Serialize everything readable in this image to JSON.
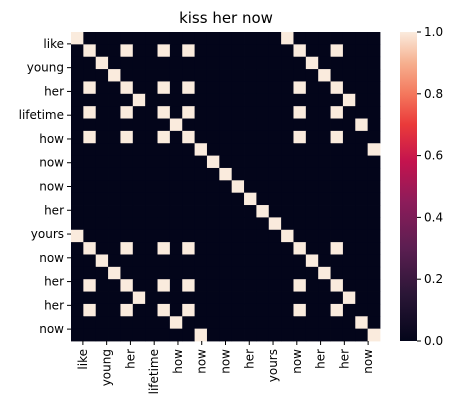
{
  "chart_data": {
    "type": "heatmap",
    "title": "kiss her now",
    "y_tick_labels": [
      "like",
      "young",
      "her",
      "lifetime",
      "how",
      "now",
      "now",
      "her",
      "yours",
      "now",
      "her",
      "her",
      "now"
    ],
    "x_tick_labels": [
      "like",
      "young",
      "her",
      "lifetime",
      "how",
      "now",
      "now",
      "her",
      "yours",
      "now",
      "her",
      "her",
      "now"
    ],
    "colorbar": {
      "min": 0,
      "max": 1,
      "ticks": [
        "0.0",
        "0.2",
        "0.4",
        "0.6",
        "0.8",
        "1.0"
      ],
      "colormap": "rocket"
    },
    "matrix": [
      [
        1,
        0,
        0,
        0,
        0,
        0,
        0,
        0,
        0,
        0,
        0,
        0,
        0,
        0,
        0,
        0,
        0,
        1,
        0,
        0,
        0,
        0,
        0,
        0,
        0
      ],
      [
        0,
        1,
        0,
        0,
        1,
        0,
        0,
        1,
        0,
        1,
        0,
        0,
        0,
        0,
        0,
        0,
        0,
        0,
        1,
        0,
        0,
        1,
        0,
        0,
        0
      ],
      [
        0,
        0,
        1,
        0,
        0,
        0,
        0,
        0,
        0,
        0,
        0,
        0,
        0,
        0,
        0,
        0,
        0,
        0,
        0,
        1,
        0,
        0,
        0,
        0,
        0
      ],
      [
        0,
        0,
        0,
        1,
        0,
        0,
        0,
        0,
        0,
        0,
        0,
        0,
        0,
        0,
        0,
        0,
        0,
        0,
        0,
        0,
        1,
        0,
        0,
        0,
        0
      ],
      [
        0,
        1,
        0,
        0,
        1,
        0,
        0,
        1,
        0,
        1,
        0,
        0,
        0,
        0,
        0,
        0,
        0,
        0,
        1,
        0,
        0,
        1,
        0,
        0,
        0
      ],
      [
        0,
        0,
        0,
        0,
        0,
        1,
        0,
        0,
        0,
        0,
        0,
        0,
        0,
        0,
        0,
        0,
        0,
        0,
        0,
        0,
        0,
        0,
        1,
        0,
        0
      ],
      [
        0,
        1,
        0,
        0,
        1,
        0,
        0,
        1,
        0,
        1,
        0,
        0,
        0,
        0,
        0,
        0,
        0,
        0,
        1,
        0,
        0,
        1,
        0,
        0,
        0
      ],
      [
        0,
        0,
        0,
        0,
        0,
        0,
        0,
        0,
        1,
        0,
        0,
        0,
        0,
        0,
        0,
        0,
        0,
        0,
        0,
        0,
        0,
        0,
        0,
        1,
        0
      ],
      [
        0,
        1,
        0,
        0,
        1,
        0,
        0,
        1,
        0,
        1,
        0,
        0,
        0,
        0,
        0,
        0,
        0,
        0,
        1,
        0,
        0,
        1,
        0,
        0,
        0
      ],
      [
        0,
        0,
        0,
        0,
        0,
        0,
        0,
        0,
        0,
        0,
        1,
        0,
        0,
        0,
        0,
        0,
        0,
        0,
        0,
        0,
        0,
        0,
        0,
        0,
        1
      ],
      [
        0,
        0,
        0,
        0,
        0,
        0,
        0,
        0,
        0,
        0,
        0,
        1,
        0,
        0,
        0,
        0,
        0,
        0,
        0,
        0,
        0,
        0,
        0,
        0,
        0
      ],
      [
        0,
        0,
        0,
        0,
        0,
        0,
        0,
        0,
        0,
        0,
        0,
        0,
        1,
        0,
        0,
        0,
        0,
        0,
        0,
        0,
        0,
        0,
        0,
        0,
        0
      ],
      [
        0,
        0,
        0,
        0,
        0,
        0,
        0,
        0,
        0,
        0,
        0,
        0,
        0,
        1,
        0,
        0,
        0,
        0,
        0,
        0,
        0,
        0,
        0,
        0,
        0
      ],
      [
        0,
        0,
        0,
        0,
        0,
        0,
        0,
        0,
        0,
        0,
        0,
        0,
        0,
        0,
        1,
        0,
        0,
        0,
        0,
        0,
        0,
        0,
        0,
        0,
        0
      ],
      [
        0,
        0,
        0,
        0,
        0,
        0,
        0,
        0,
        0,
        0,
        0,
        0,
        0,
        0,
        0,
        1,
        0,
        0,
        0,
        0,
        0,
        0,
        0,
        0,
        0
      ],
      [
        0,
        0,
        0,
        0,
        0,
        0,
        0,
        0,
        0,
        0,
        0,
        0,
        0,
        0,
        0,
        0,
        1,
        0,
        0,
        0,
        0,
        0,
        0,
        0,
        0
      ],
      [
        1,
        0,
        0,
        0,
        0,
        0,
        0,
        0,
        0,
        0,
        0,
        0,
        0,
        0,
        0,
        0,
        0,
        1,
        0,
        0,
        0,
        0,
        0,
        0,
        0
      ],
      [
        0,
        1,
        0,
        0,
        1,
        0,
        0,
        1,
        0,
        1,
        0,
        0,
        0,
        0,
        0,
        0,
        0,
        0,
        1,
        0,
        0,
        1,
        0,
        0,
        0
      ],
      [
        0,
        0,
        1,
        0,
        0,
        0,
        0,
        0,
        0,
        0,
        0,
        0,
        0,
        0,
        0,
        0,
        0,
        0,
        0,
        1,
        0,
        0,
        0,
        0,
        0
      ],
      [
        0,
        0,
        0,
        1,
        0,
        0,
        0,
        0,
        0,
        0,
        0,
        0,
        0,
        0,
        0,
        0,
        0,
        0,
        0,
        0,
        1,
        0,
        0,
        0,
        0
      ],
      [
        0,
        1,
        0,
        0,
        1,
        0,
        0,
        1,
        0,
        1,
        0,
        0,
        0,
        0,
        0,
        0,
        0,
        0,
        1,
        0,
        0,
        1,
        0,
        0,
        0
      ],
      [
        0,
        0,
        0,
        0,
        0,
        1,
        0,
        0,
        0,
        0,
        0,
        0,
        0,
        0,
        0,
        0,
        0,
        0,
        0,
        0,
        0,
        0,
        1,
        0,
        0
      ],
      [
        0,
        1,
        0,
        0,
        1,
        0,
        0,
        1,
        0,
        1,
        0,
        0,
        0,
        0,
        0,
        0,
        0,
        0,
        1,
        0,
        0,
        1,
        0,
        0,
        0
      ],
      [
        0,
        0,
        0,
        0,
        0,
        0,
        0,
        0,
        1,
        0,
        0,
        0,
        0,
        0,
        0,
        0,
        0,
        0,
        0,
        0,
        0,
        0,
        0,
        1,
        0
      ],
      [
        0,
        0,
        0,
        0,
        0,
        0,
        0,
        0,
        0,
        0,
        1,
        0,
        0,
        0,
        0,
        0,
        0,
        0,
        0,
        0,
        0,
        0,
        0,
        0,
        1
      ]
    ]
  }
}
